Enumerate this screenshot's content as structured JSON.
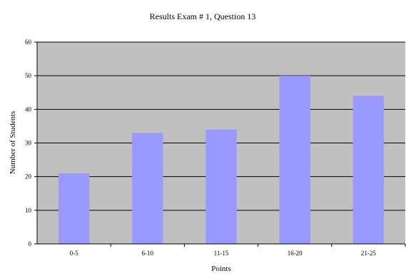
{
  "chart_data": {
    "type": "bar",
    "title": "Results Exam # 1, Question 13",
    "xlabel": "Points",
    "ylabel": "Number of Students",
    "categories": [
      "0-5",
      "6-10",
      "11-15",
      "16-20",
      "21-25"
    ],
    "values": [
      21,
      33,
      34,
      50,
      44
    ],
    "ylim": [
      0,
      60
    ],
    "yticks": [
      0,
      10,
      20,
      30,
      40,
      50,
      60
    ],
    "grid": true,
    "legend": "none",
    "colors": {
      "plot_background": "#c0c0c0",
      "bar": "#9999ff",
      "gridline": "#000000"
    }
  }
}
